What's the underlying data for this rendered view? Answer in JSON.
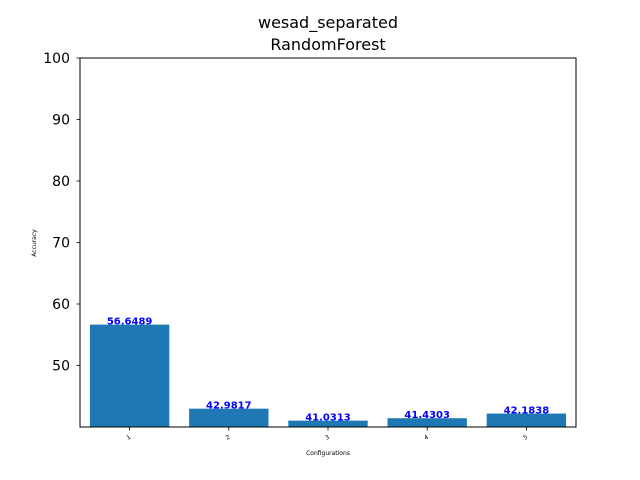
{
  "chart_data": {
    "type": "bar",
    "title": [
      "wesad_separated",
      "RandomForest"
    ],
    "categories": [
      "1",
      "2",
      "3",
      "4",
      "5"
    ],
    "values": [
      56.6489,
      42.9817,
      41.0313,
      41.4303,
      42.1838
    ],
    "data_labels": [
      "56.6489",
      "42.9817",
      "41.0313",
      "41.4303",
      "42.1838"
    ],
    "xlabel": "Configurations",
    "ylabel": "Accuracy",
    "ylim": [
      40,
      100
    ],
    "yticks": [
      "50",
      "60",
      "70",
      "80",
      "90",
      "100"
    ],
    "bar_color": "#1f77b4",
    "label_color": "#0000ff",
    "grid": false,
    "legend": null
  }
}
